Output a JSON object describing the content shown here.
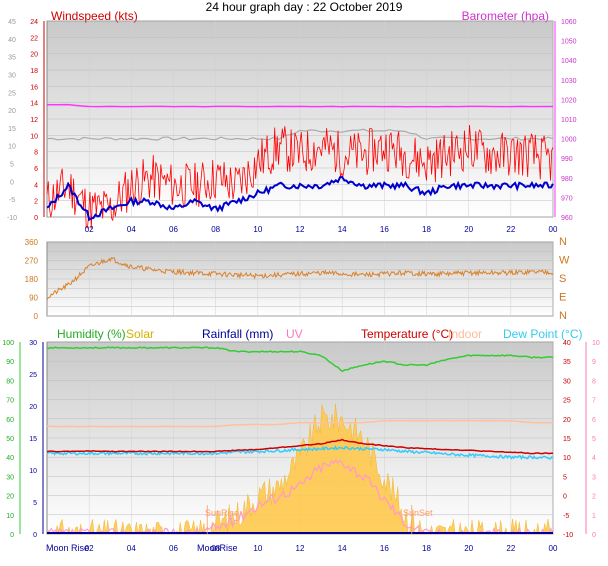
{
  "title": "24 hour graph day : 22 October 2019",
  "colors": {
    "wind": "#ff0000",
    "gust_avg": "#0000cc",
    "baro": "#ff33ff",
    "grey_line": "#aaaaaa",
    "direction": "#d9822b",
    "humidity": "#33cc33",
    "solar": "#ffc94d",
    "uv": "#ff99cc",
    "temp": "#cc0000",
    "indoor": "#ffc0a0",
    "dew": "#33ccff",
    "rain": "#000099"
  },
  "x_ticks": [
    "02",
    "04",
    "06",
    "08",
    "10",
    "12",
    "14",
    "16",
    "18",
    "20",
    "22",
    "00"
  ],
  "chart_data": [
    {
      "type": "line",
      "panel": "wind-baro",
      "title": "24 hour graph day : 22 October 2019",
      "left_label": "Windspeed (kts)",
      "right_label": "Barometer (hpa)",
      "y_left_ticks": [
        "0",
        "2",
        "4",
        "6",
        "8",
        "10",
        "12",
        "14",
        "16",
        "18",
        "20",
        "22",
        "24"
      ],
      "y_right_ticks": [
        "960",
        "970",
        "980",
        "990",
        "1000",
        "1010",
        "1020",
        "1030",
        "1040",
        "1050",
        "1060"
      ],
      "y_outer_ticks": [
        "-10",
        "-5",
        "0",
        "5",
        "10",
        "15",
        "20",
        "25",
        "30",
        "35",
        "40",
        "45"
      ],
      "ylim_left": [
        0,
        25
      ],
      "ylim_right": [
        955,
        1065
      ],
      "x": [
        0,
        1,
        2,
        3,
        4,
        5,
        6,
        7,
        8,
        9,
        10,
        11,
        12,
        13,
        14,
        15,
        16,
        17,
        18,
        19,
        20,
        21,
        22,
        23,
        24
      ],
      "series": [
        {
          "color_key": "wind",
          "values": [
            2,
            4,
            1,
            1,
            4,
            5,
            4,
            4,
            5,
            4,
            7,
            9,
            8,
            9,
            8,
            8,
            9,
            8,
            7,
            8,
            9,
            8,
            8,
            8,
            7
          ]
        },
        {
          "color_key": "gust_avg",
          "values": [
            1,
            4,
            0,
            1,
            2,
            2,
            1,
            2,
            1,
            2,
            3,
            4,
            4,
            4,
            5,
            4,
            4,
            4,
            3,
            4,
            4,
            4,
            4,
            4,
            4
          ]
        },
        {
          "color_key": "baro",
          "values": [
            1018,
            1018,
            1017,
            1017,
            1017,
            1017,
            1017,
            1017,
            1017,
            1017,
            1017,
            1017,
            1017,
            1017,
            1017,
            1017,
            1017,
            1017,
            1017,
            1017,
            1017,
            1017,
            1017,
            1017,
            1017
          ]
        },
        {
          "color_key": "grey_line",
          "values": [
            10,
            10,
            10,
            10,
            10,
            10,
            10,
            10,
            10,
            10,
            10,
            10,
            11,
            11,
            11,
            11,
            11,
            11,
            10,
            10,
            10,
            10,
            10,
            10,
            10
          ]
        }
      ]
    },
    {
      "type": "line",
      "panel": "direction",
      "y_left_ticks": [
        "0",
        "90",
        "180",
        "270",
        "360"
      ],
      "y_right_ticks": [
        "N",
        "E",
        "S",
        "W",
        "N"
      ],
      "ylim": [
        0,
        360
      ],
      "x": [
        0,
        1,
        2,
        3,
        4,
        5,
        6,
        7,
        8,
        9,
        10,
        11,
        12,
        13,
        14,
        15,
        16,
        17,
        18,
        19,
        20,
        21,
        22,
        23,
        24
      ],
      "series": [
        {
          "color_key": "direction",
          "values": [
            90,
            150,
            240,
            280,
            240,
            225,
            215,
            210,
            205,
            200,
            195,
            200,
            205,
            210,
            205,
            200,
            205,
            210,
            205,
            205,
            210,
            210,
            210,
            215,
            215
          ]
        }
      ]
    },
    {
      "type": "line",
      "panel": "temp-humidity",
      "labels": {
        "humidity": "Humidity (%)",
        "solar": "Solar",
        "rainfall": "Rainfall (mm)",
        "uv": "UV",
        "temperature": "Temperature (°C)",
        "indoor": "Indoor",
        "dew": "Dew Point (°C)"
      },
      "y_hum_ticks": [
        "0",
        "10",
        "20",
        "30",
        "40",
        "50",
        "60",
        "70",
        "80",
        "90",
        "100"
      ],
      "y_rain_ticks": [
        "0",
        "5",
        "10",
        "15",
        "20",
        "25",
        "30"
      ],
      "y_temp_ticks": [
        "-10",
        "-5",
        "0",
        "5",
        "10",
        "15",
        "20",
        "25",
        "30",
        "35",
        "40"
      ],
      "y_uv_ticks": [
        "0",
        "1",
        "2",
        "3",
        "4",
        "5",
        "6",
        "7",
        "8",
        "9",
        "10"
      ],
      "ylim_temp": [
        -10,
        40
      ],
      "annotations": {
        "sunrise": "SunRise",
        "sunset": "SunSet",
        "moonrise": "Moon Rise",
        "moonrise_short": "MoonRise"
      },
      "x": [
        0,
        1,
        2,
        3,
        4,
        5,
        6,
        7,
        8,
        9,
        10,
        11,
        12,
        13,
        14,
        15,
        16,
        17,
        18,
        19,
        20,
        21,
        22,
        23,
        24
      ],
      "series": [
        {
          "name": "Humidity (%)",
          "color_key": "humidity",
          "values": [
            97,
            97,
            97,
            97,
            97,
            97,
            97,
            97,
            97,
            95,
            95,
            95,
            95,
            93,
            85,
            88,
            90,
            88,
            88,
            91,
            93,
            93,
            93,
            92,
            92
          ]
        },
        {
          "name": "Temperature (°C)",
          "color_key": "temp",
          "values": [
            11.5,
            11.5,
            11.6,
            11.5,
            11.5,
            11.5,
            11.5,
            11.5,
            11.5,
            11.8,
            12.0,
            12.5,
            13,
            13.5,
            14.5,
            13.5,
            13,
            12.5,
            12.2,
            12,
            11.8,
            11.5,
            11.3,
            11,
            11
          ]
        },
        {
          "name": "Indoor",
          "color_key": "indoor",
          "values": [
            18,
            18,
            18,
            18,
            18,
            18,
            18,
            18,
            18,
            18.5,
            18.5,
            18.5,
            19,
            19,
            19,
            19,
            19.5,
            19.5,
            19.5,
            19.5,
            19.5,
            19.5,
            19.5,
            19,
            19
          ]
        },
        {
          "name": "Dew Point (°C)",
          "color_key": "dew",
          "values": [
            11,
            11,
            11,
            11,
            11,
            11,
            11,
            11,
            11,
            11.3,
            11.5,
            11.7,
            12,
            12.2,
            12.5,
            12.2,
            12,
            11.5,
            11.2,
            10.8,
            10.5,
            10.3,
            10,
            10,
            9.8
          ]
        },
        {
          "name": "Solar",
          "color_key": "solar",
          "values": [
            0,
            0,
            0,
            0,
            0,
            0,
            0,
            0,
            0.5,
            1,
            2,
            2.5,
            4,
            6,
            6,
            5,
            3,
            1,
            0,
            0,
            0,
            0,
            0,
            0,
            0
          ]
        },
        {
          "name": "UV",
          "color_key": "uv",
          "values": [
            0,
            0,
            0,
            0,
            0,
            0,
            0,
            0,
            0.3,
            0.8,
            1.5,
            2,
            2.5,
            3.5,
            3.8,
            3,
            1.8,
            0.6,
            0,
            0,
            0,
            0,
            0,
            0,
            0
          ]
        }
      ]
    }
  ]
}
